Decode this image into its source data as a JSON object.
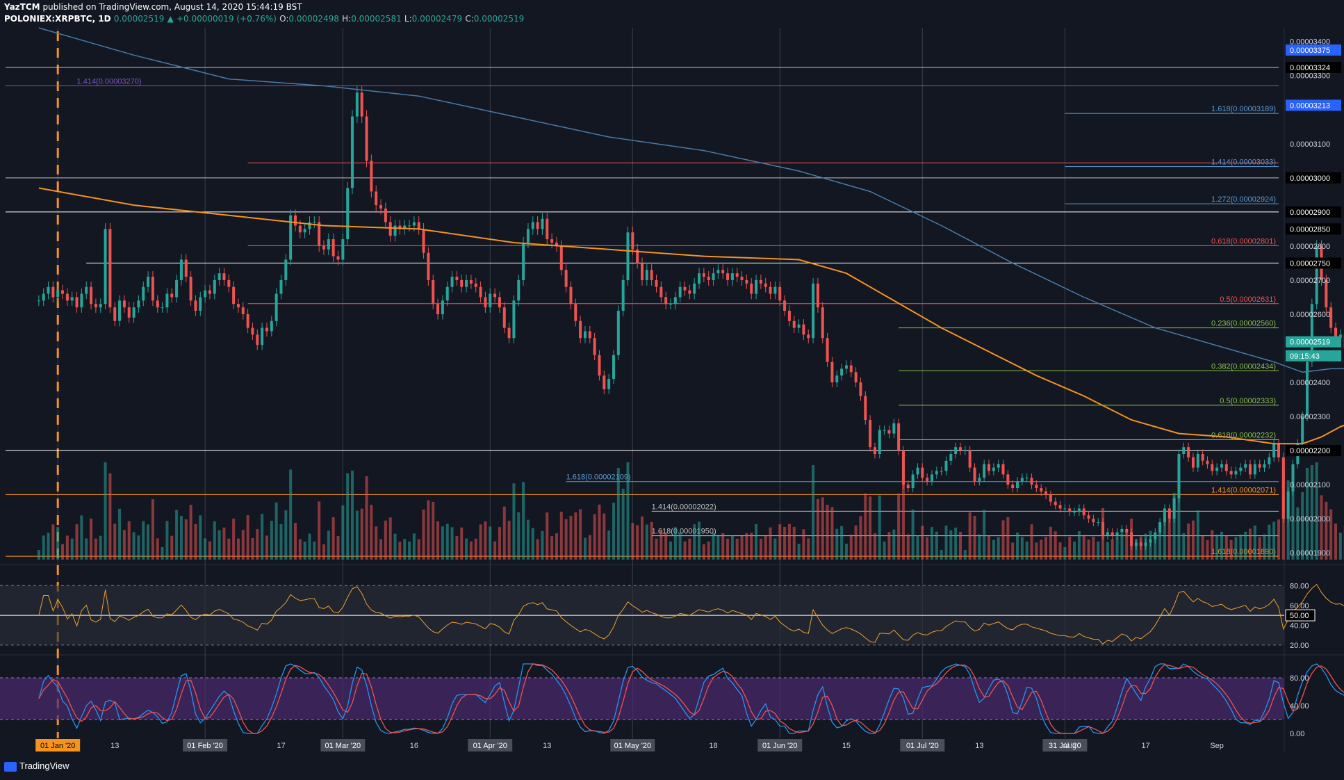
{
  "header": {
    "publisher": "YazTCM",
    "published_text": "published on TradingView.com, August 14, 2020 15:44:19 BST",
    "symbol": "POLONIEX:XRPBTC, 1D",
    "last": "0.00002519",
    "change": "+0.00000019 (+0.76%)",
    "o_label": "O:",
    "o": "0.00002498",
    "h_label": "H:",
    "h": "0.00002581",
    "l_label": "L:",
    "l": "0.00002479",
    "c_label": "C:",
    "c": "0.00002519"
  },
  "footer": {
    "brand": "TradingView"
  },
  "colors": {
    "background": "#131722",
    "up": "#26a69a",
    "down": "#ef5350",
    "ma_orange": "#f7931a",
    "ma_blue": "#4a7aa8",
    "rsi": "#f0a030",
    "stoch_k": "#2196f3",
    "stoch_d": "#ef5350"
  },
  "chart_data": [
    {
      "type": "candlestick",
      "name": "price",
      "ylim": [
        1.88e-05,
        3.43e-05
      ],
      "x_range": [
        "2019-12-21",
        "2020-09-14"
      ],
      "x_ticks": [
        {
          "label": "01 Jan '20",
          "date": "2020-01-01",
          "boxed": true
        },
        {
          "label": "13",
          "date": "2020-01-13"
        },
        {
          "label": "01 Feb '20",
          "date": "2020-02-01",
          "boxed": true
        },
        {
          "label": "17",
          "date": "2020-02-17"
        },
        {
          "label": "01 Mar '20",
          "date": "2020-03-01",
          "boxed": true
        },
        {
          "label": "16",
          "date": "2020-03-16"
        },
        {
          "label": "01 Apr '20",
          "date": "2020-04-01",
          "boxed": true
        },
        {
          "label": "13",
          "date": "2020-04-13"
        },
        {
          "label": "01 May '20",
          "date": "2020-05-01",
          "boxed": true
        },
        {
          "label": "18",
          "date": "2020-05-18"
        },
        {
          "label": "01 Jun '20",
          "date": "2020-06-01",
          "boxed": true
        },
        {
          "label": "15",
          "date": "2020-06-15"
        },
        {
          "label": "01 Jul '20",
          "date": "2020-07-01",
          "boxed": true
        },
        {
          "label": "13",
          "date": "2020-07-13"
        },
        {
          "label": "31 Jul '20",
          "date": "2020-07-31",
          "boxed": true
        },
        {
          "label": "Aug",
          "date": "2020-08-01"
        },
        {
          "label": "17",
          "date": "2020-08-17"
        },
        {
          "label": "Sep",
          "date": "2020-09-01"
        }
      ],
      "y_ticks": [
        "0.00003400",
        "0.00003300",
        "0.00003100",
        "0.00003000",
        "0.00002900",
        "0.00002850",
        "0.00002800",
        "0.00002750",
        "0.00002700",
        "0.00002600",
        "0.00002400",
        "0.00002300",
        "0.00002200",
        "0.00002100",
        "0.00002000",
        "0.00001900"
      ],
      "y_tick_values": [
        3.4e-05,
        3.3e-05,
        3.1e-05,
        3e-05,
        2.9e-05,
        2.85e-05,
        2.8e-05,
        2.75e-05,
        2.7e-05,
        2.6e-05,
        2.4e-05,
        2.3e-05,
        2.2e-05,
        2.1e-05,
        2e-05,
        1.9e-05
      ],
      "price_badges": [
        {
          "label": "0.00003375",
          "value": 3.375e-05,
          "style": "blue"
        },
        {
          "label": "0.00003324",
          "value": 3.324e-05,
          "style": "dark"
        },
        {
          "label": "0.00003213",
          "value": 3.213e-05,
          "style": "blue"
        },
        {
          "label": "0.00003000",
          "value": 3e-05,
          "style": "dark"
        },
        {
          "label": "0.00002900",
          "value": 2.9e-05,
          "style": "dark"
        },
        {
          "label": "0.00002850",
          "value": 2.85e-05,
          "style": "dark"
        },
        {
          "label": "0.00002750",
          "value": 2.75e-05,
          "style": "dark"
        },
        {
          "label": "0.00002519",
          "value": 2.519e-05,
          "style": "teal"
        },
        {
          "label": "09:15:43",
          "value": 2.478e-05,
          "style": "teal"
        },
        {
          "label": "0.00002200",
          "value": 2.2e-05,
          "style": "dark"
        }
      ],
      "levels": [
        {
          "value": 3.324e-05,
          "color": "#c0c0c0",
          "from": "2019-12-21",
          "label": ""
        },
        {
          "value": 3.27e-05,
          "color": "#7e57c2",
          "from": "2019-12-21",
          "label": "1.414(0.00003270)",
          "label_date": "2020-01-05"
        },
        {
          "value": 3.189e-05,
          "color": "#5b9bd5",
          "from": "2020-07-31",
          "label": "1.618(0.00003189)"
        },
        {
          "value": 3.044e-05,
          "color": "#ef5350",
          "from": "2020-02-10",
          "label": ""
        },
        {
          "value": 3.033e-05,
          "color": "#5b9bd5",
          "from": "2020-07-31",
          "label": "1.414(0.00003033)"
        },
        {
          "value": 3e-05,
          "color": "#c0c0c0",
          "from": "2019-12-21",
          "label": ""
        },
        {
          "value": 2.924e-05,
          "color": "#5b9bd5",
          "from": "2020-07-31",
          "label": "1.272(0.00002924)"
        },
        {
          "value": 2.9e-05,
          "color": "#ffffff",
          "from": "2019-12-21",
          "label": ""
        },
        {
          "value": 2.801e-05,
          "color": "#ef5350",
          "from": "2020-02-10",
          "label": "0.618(0.00002801)"
        },
        {
          "value": 2.75e-05,
          "color": "#ffffff",
          "from": "2020-01-07",
          "label": ""
        },
        {
          "value": 2.631e-05,
          "color": "#ef5350",
          "from": "2020-02-10",
          "label": "0.5(0.00002631)"
        },
        {
          "value": 2.56e-05,
          "color": "#8bc34a",
          "from": "2020-06-26",
          "label": "0.236(0.00002560)"
        },
        {
          "value": 2.434e-05,
          "color": "#8bc34a",
          "from": "2020-06-26",
          "label": "0.382(0.00002434)"
        },
        {
          "value": 2.333e-05,
          "color": "#8bc34a",
          "from": "2020-06-26",
          "label": "0.5(0.00002333)"
        },
        {
          "value": 2.232e-05,
          "color": "#8bc34a",
          "from": "2020-06-26",
          "label": "0.618(0.00002232)"
        },
        {
          "value": 2.2e-05,
          "color": "#ffffff",
          "from": "2019-12-21",
          "label": ""
        },
        {
          "value": 2.109e-05,
          "color": "#5b9bd5",
          "from": "2020-04-17",
          "label": "1.618(0.00002109)",
          "label_date": "2020-04-17"
        },
        {
          "value": 2.071e-05,
          "color": "#f7931a",
          "from": "2019-12-21",
          "label": "1.414(0.00002071)"
        },
        {
          "value": 2.022e-05,
          "color": "#c0c0c0",
          "from": "2020-05-05",
          "label": "1.414(0.00002022)",
          "label_date": "2020-05-05"
        },
        {
          "value": 1.95e-05,
          "color": "#c0c0c0",
          "from": "2020-05-05",
          "label": "1.618(0.00001950)",
          "label_date": "2020-05-05"
        },
        {
          "value": 1.89e-05,
          "color": "#f7931a",
          "from": "2019-12-21",
          "label": "1.618(0.00001890)"
        }
      ],
      "ohlc_closes": [
        2.64e-05,
        2.66e-05,
        2.68e-05,
        2.65e-05,
        2.67e-05,
        2.66e-05,
        2.64e-05,
        2.65e-05,
        2.62e-05,
        2.66e-05,
        2.68e-05,
        2.63e-05,
        2.62e-05,
        2.63e-05,
        2.85e-05,
        2.62e-05,
        2.58e-05,
        2.64e-05,
        2.62e-05,
        2.59e-05,
        2.62e-05,
        2.64e-05,
        2.68e-05,
        2.71e-05,
        2.64e-05,
        2.62e-05,
        2.62e-05,
        2.66e-05,
        2.65e-05,
        2.7e-05,
        2.76e-05,
        2.71e-05,
        2.64e-05,
        2.61e-05,
        2.65e-05,
        2.67e-05,
        2.66e-05,
        2.7e-05,
        2.72e-05,
        2.7e-05,
        2.68e-05,
        2.63e-05,
        2.62e-05,
        2.6e-05,
        2.56e-05,
        2.54e-05,
        2.51e-05,
        2.56e-05,
        2.55e-05,
        2.58e-05,
        2.66e-05,
        2.7e-05,
        2.76e-05,
        2.89e-05,
        2.86e-05,
        2.84e-05,
        2.85e-05,
        2.87e-05,
        2.87e-05,
        2.8e-05,
        2.79e-05,
        2.82e-05,
        2.77e-05,
        2.76e-05,
        2.82e-05,
        2.97e-05,
        3.18e-05,
        3.25e-05,
        3.18e-05,
        3.05e-05,
        2.96e-05,
        2.92e-05,
        2.91e-05,
        2.87e-05,
        2.83e-05,
        2.86e-05,
        2.85e-05,
        2.86e-05,
        2.86e-05,
        2.87e-05,
        2.85e-05,
        2.78e-05,
        2.7e-05,
        2.63e-05,
        2.6e-05,
        2.64e-05,
        2.68e-05,
        2.71e-05,
        2.7e-05,
        2.68e-05,
        2.7e-05,
        2.69e-05,
        2.68e-05,
        2.65e-05,
        2.62e-05,
        2.66e-05,
        2.65e-05,
        2.62e-05,
        2.56e-05,
        2.53e-05,
        2.64e-05,
        2.7e-05,
        2.81e-05,
        2.85e-05,
        2.87e-05,
        2.85e-05,
        2.88e-05,
        2.82e-05,
        2.81e-05,
        2.8e-05,
        2.73e-05,
        2.68e-05,
        2.63e-05,
        2.58e-05,
        2.53e-05,
        2.55e-05,
        2.53e-05,
        2.48e-05,
        2.42e-05,
        2.38e-05,
        2.41e-05,
        2.48e-05,
        2.61e-05,
        2.7e-05,
        2.84e-05,
        2.79e-05,
        2.75e-05,
        2.7e-05,
        2.73e-05,
        2.7e-05,
        2.68e-05,
        2.65e-05,
        2.63e-05,
        2.63e-05,
        2.65e-05,
        2.68e-05,
        2.67e-05,
        2.66e-05,
        2.69e-05,
        2.72e-05,
        2.71e-05,
        2.7e-05,
        2.72e-05,
        2.73e-05,
        2.72e-05,
        2.7e-05,
        2.72e-05,
        2.71e-05,
        2.7e-05,
        2.69e-05,
        2.66e-05,
        2.7e-05,
        2.69e-05,
        2.68e-05,
        2.66e-05,
        2.68e-05,
        2.64e-05,
        2.61e-05,
        2.58e-05,
        2.56e-05,
        2.57e-05,
        2.54e-05,
        2.53e-05,
        2.69e-05,
        2.62e-05,
        2.53e-05,
        2.46e-05,
        2.4e-05,
        2.42e-05,
        2.44e-05,
        2.45e-05,
        2.43e-05,
        2.4e-05,
        2.36e-05,
        2.29e-05,
        2.21e-05,
        2.19e-05,
        2.26e-05,
        2.26e-05,
        2.25e-05,
        2.28e-05,
        2.2e-05,
        2.1e-05,
        2.09e-05,
        2.13e-05,
        2.15e-05,
        2.12e-05,
        2.11e-05,
        2.13e-05,
        2.14e-05,
        2.14e-05,
        2.17e-05,
        2.19e-05,
        2.21e-05,
        2.2e-05,
        2.2e-05,
        2.15e-05,
        2.11e-05,
        2.12e-05,
        2.16e-05,
        2.14e-05,
        2.15e-05,
        2.16e-05,
        2.13e-05,
        2.1e-05,
        2.09e-05,
        2.11e-05,
        2.12e-05,
        2.12e-05,
        2.1e-05,
        2.09e-05,
        2.08e-05,
        2.07e-05,
        2.05e-05,
        2.04e-05,
        2.03e-05,
        2.03e-05,
        2.02e-05,
        2.02e-05,
        2.03e-05,
        2.01e-05,
        2e-05,
        1.99e-05,
        1.99e-05,
        1.95e-05,
        1.96e-05,
        1.95e-05,
        1.96e-05,
        1.97e-05,
        1.96e-05,
        1.92e-05,
        1.93e-05,
        1.92e-05,
        1.93e-05,
        1.94e-05,
        1.96e-05,
        1.99e-05,
        2.03e-05,
        2e-05,
        2.06e-05,
        2.19e-05,
        2.21e-05,
        2.18e-05,
        2.15e-05,
        2.19e-05,
        2.17e-05,
        2.16e-05,
        2.14e-05,
        2.15e-05,
        2.16e-05,
        2.14e-05,
        2.13e-05,
        2.14e-05,
        2.15e-05,
        2.16e-05,
        2.13e-05,
        2.16e-05,
        2.15e-05,
        2.16e-05,
        2.18e-05,
        2.22e-05,
        2.18e-05,
        2e-05,
        2.08e-05,
        2.16e-05,
        2.22e-05,
        2.3e-05,
        2.46e-05,
        2.63e-05,
        2.8e-05,
        2.7e-05,
        2.62e-05,
        2.56e-05,
        2.53e-05,
        2.54e-05,
        2.5e-05,
        2.46e-05,
        2.48e-05,
        2.44e-05,
        2.5e-05,
        2.52e-05
      ],
      "ma_orange": [
        [
          0,
          2.97e-05
        ],
        [
          20,
          2.92e-05
        ],
        [
          40,
          2.89e-05
        ],
        [
          60,
          2.86e-05
        ],
        [
          80,
          2.85e-05
        ],
        [
          100,
          2.81e-05
        ],
        [
          120,
          2.79e-05
        ],
        [
          140,
          2.77e-05
        ],
        [
          160,
          2.76e-05
        ],
        [
          170,
          2.72e-05
        ],
        [
          180,
          2.64e-05
        ],
        [
          190,
          2.56e-05
        ],
        [
          200,
          2.49e-05
        ],
        [
          210,
          2.42e-05
        ],
        [
          220,
          2.36e-05
        ],
        [
          230,
          2.29e-05
        ],
        [
          240,
          2.25e-05
        ],
        [
          250,
          2.24e-05
        ],
        [
          260,
          2.22e-05
        ],
        [
          266,
          2.22e-05
        ],
        [
          270,
          2.24e-05
        ],
        [
          274,
          2.27e-05
        ],
        [
          280,
          2.3e-05
        ],
        [
          288,
          2.33e-05
        ]
      ],
      "ma_blue": [
        [
          0,
          3.44e-05
        ],
        [
          20,
          3.36e-05
        ],
        [
          40,
          3.29e-05
        ],
        [
          60,
          3.27e-05
        ],
        [
          80,
          3.24e-05
        ],
        [
          100,
          3.18e-05
        ],
        [
          120,
          3.12e-05
        ],
        [
          140,
          3.08e-05
        ],
        [
          160,
          3.02e-05
        ],
        [
          175,
          2.96e-05
        ],
        [
          190,
          2.86e-05
        ],
        [
          205,
          2.75e-05
        ],
        [
          220,
          2.65e-05
        ],
        [
          235,
          2.56e-05
        ],
        [
          250,
          2.5e-05
        ],
        [
          260,
          2.46e-05
        ],
        [
          266,
          2.43e-05
        ],
        [
          272,
          2.44e-05
        ],
        [
          280,
          2.44e-05
        ],
        [
          288,
          2.45e-05
        ]
      ]
    },
    {
      "type": "line",
      "name": "RSI",
      "ylim": [
        15,
        90
      ],
      "y_ticks": [
        80,
        60,
        40,
        20
      ],
      "badge": {
        "label": "50.00",
        "value": 50
      },
      "band": [
        20,
        80
      ],
      "mid": 50
    },
    {
      "type": "line",
      "name": "Stochastic RSI",
      "ylim": [
        -5,
        105
      ],
      "y_ticks": [
        80,
        40,
        0
      ],
      "band": [
        20,
        80
      ]
    }
  ]
}
